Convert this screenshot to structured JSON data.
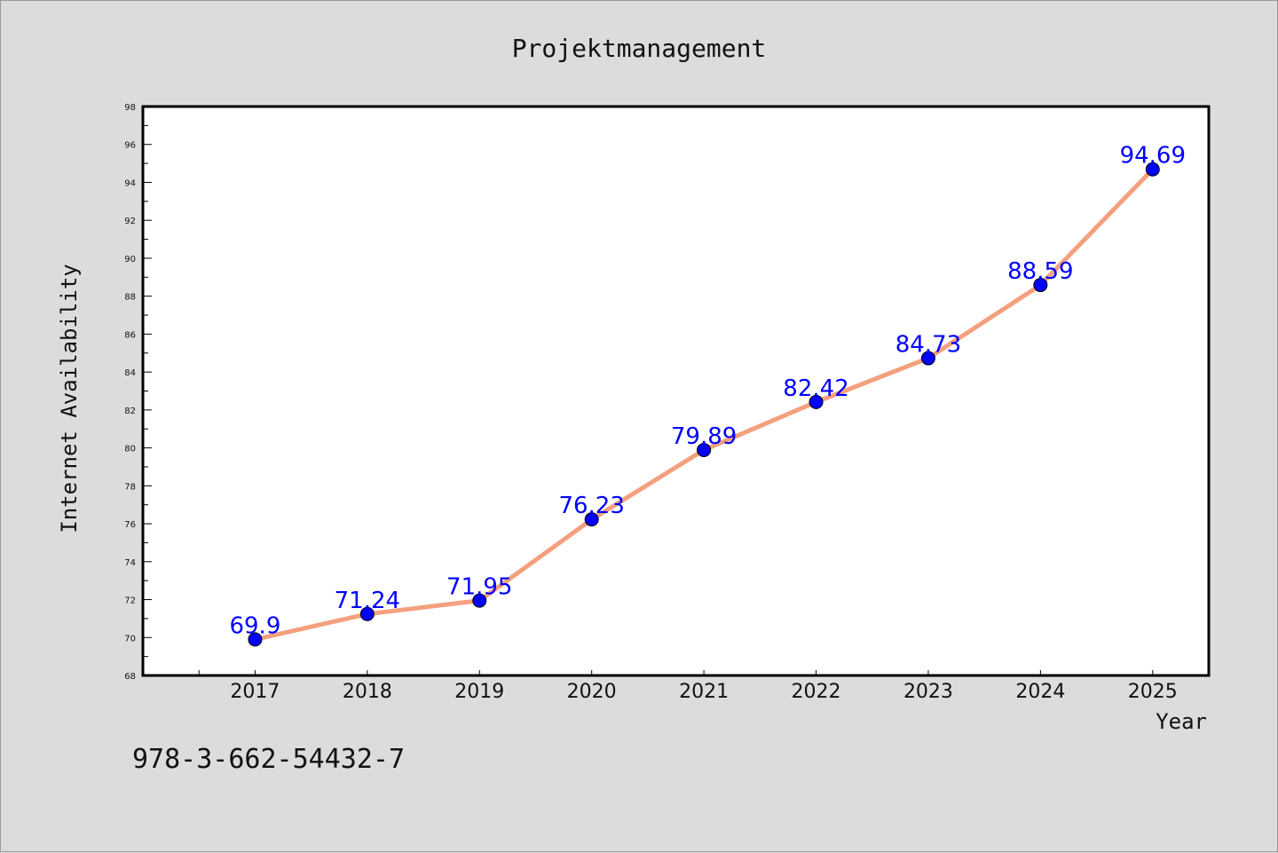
{
  "footer": {
    "isbn": "978-3-662-54432-7"
  },
  "chart_data": {
    "type": "line",
    "title": "Projektmanagement",
    "xlabel": "Year",
    "ylabel": "Internet Availability",
    "x": [
      2017,
      2018,
      2019,
      2020,
      2021,
      2022,
      2023,
      2024,
      2025
    ],
    "x_tick_labels": [
      "2017",
      "2018",
      "2019",
      "2020",
      "2021",
      "2022",
      "2023",
      "2024",
      "2025"
    ],
    "xlim": [
      2016.0,
      2025.5
    ],
    "series": [
      {
        "values": [
          69.9,
          71.24,
          71.95,
          76.23,
          79.89,
          82.42,
          84.73,
          88.59,
          94.69
        ],
        "data_labels": [
          "69.9",
          "71.24",
          "71.95",
          "76.23",
          "79.89",
          "82.42",
          "84.73",
          "88.59",
          "94.69"
        ],
        "line_color": "#f4a07e",
        "marker_color": "#0000ff"
      }
    ],
    "ylim": [
      68,
      98
    ],
    "y_ticks": [
      68,
      70,
      72,
      74,
      76,
      78,
      80,
      82,
      84,
      86,
      88,
      90,
      92,
      94,
      96,
      98
    ],
    "grid": false,
    "legend": "none",
    "colors": {
      "background": "#dcdcdc",
      "plot_area": "#ffffff",
      "data_label": "#0000ff"
    }
  }
}
